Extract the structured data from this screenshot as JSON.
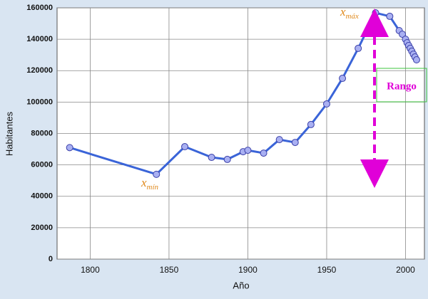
{
  "chart_data": {
    "type": "line",
    "x_label": "Año",
    "y_label": "Habitantes",
    "x": [
      1787,
      1842,
      1860,
      1877,
      1887,
      1897,
      1900,
      1910,
      1920,
      1930,
      1940,
      1950,
      1960,
      1970,
      1981,
      1990,
      1996,
      1998,
      2000,
      2001,
      2002,
      2003,
      2004,
      2005,
      2006,
      2007
    ],
    "series": [
      {
        "name": "Habitantes",
        "color": "#3a64d8",
        "values": [
          71000,
          54000,
          71600,
          64800,
          63500,
          68400,
          69300,
          67500,
          76100,
          74300,
          85700,
          98800,
          115100,
          134200,
          156800,
          154600,
          145500,
          143200,
          140000,
          137800,
          136000,
          134200,
          132400,
          130500,
          128700,
          126900
        ]
      }
    ],
    "xlim": [
      1779,
      2012
    ],
    "xticks": [
      1800,
      1850,
      1900,
      1950,
      2000
    ],
    "ylim": [
      0,
      160000
    ],
    "yticks": [
      0,
      20000,
      40000,
      60000,
      80000,
      100000,
      120000,
      140000,
      160000
    ],
    "grid": true,
    "annotations": [
      {
        "text": "x",
        "subscript": "máx"
      },
      {
        "text": "x",
        "subscript": "mín"
      }
    ],
    "range_label": "Rango"
  }
}
